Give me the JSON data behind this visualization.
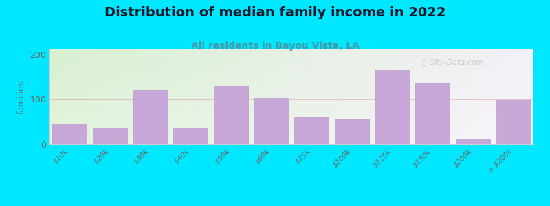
{
  "title": "Distribution of median family income in 2022",
  "subtitle": "All residents in Bayou Vista, LA",
  "categories": [
    "$10k",
    "$20k",
    "$30k",
    "$40k",
    "$50k",
    "$60k",
    "$75k",
    "$100k",
    "$125k",
    "$150k",
    "$200k",
    "> $200k"
  ],
  "values": [
    45,
    35,
    120,
    35,
    130,
    102,
    60,
    55,
    165,
    135,
    10,
    97
  ],
  "bar_color": "#c8a8d8",
  "bar_edge_color": "#b898c8",
  "background_outer": "#00e8ff",
  "ylabel": "families",
  "ylim": [
    0,
    210
  ],
  "yticks": [
    0,
    100,
    200
  ],
  "title_fontsize": 14,
  "subtitle_fontsize": 10,
  "watermark": "City-Data.com"
}
